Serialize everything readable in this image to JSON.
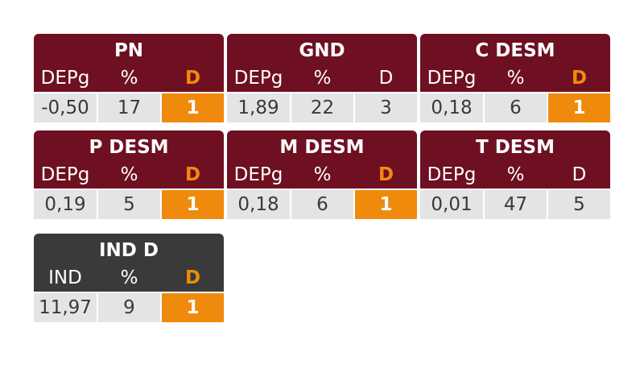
{
  "cards": [
    {
      "title": "PN",
      "headers": [
        "DEPg",
        "%",
        "D"
      ],
      "values": [
        "-0,50",
        "17",
        "1"
      ],
      "highlight": true
    },
    {
      "title": "GND",
      "headers": [
        "DEPg",
        "%",
        "D"
      ],
      "values": [
        "1,89",
        "22",
        "3"
      ],
      "highlight": false
    },
    {
      "title": "C DESM",
      "headers": [
        "DEPg",
        "%",
        "D"
      ],
      "values": [
        "0,18",
        "6",
        "1"
      ],
      "highlight": true
    },
    {
      "title": "P DESM",
      "headers": [
        "DEPg",
        "%",
        "D"
      ],
      "values": [
        "0,19",
        "5",
        "1"
      ],
      "highlight": true
    },
    {
      "title": "M DESM",
      "headers": [
        "DEPg",
        "%",
        "D"
      ],
      "values": [
        "0,18",
        "6",
        "1"
      ],
      "highlight": true
    },
    {
      "title": "T DESM",
      "headers": [
        "DEPg",
        "%",
        "D"
      ],
      "values": [
        "0,01",
        "47",
        "5"
      ],
      "highlight": false
    },
    {
      "title": "IND D",
      "headers": [
        "IND",
        "%",
        "D"
      ],
      "values": [
        "11,97",
        "9",
        "1"
      ],
      "highlight": true
    }
  ],
  "colors": {
    "header_maroon": "#6e1021",
    "header_dark": "#3a3a3a",
    "accent_orange": "#f08a0c",
    "cell_gray": "#e4e4e4"
  }
}
